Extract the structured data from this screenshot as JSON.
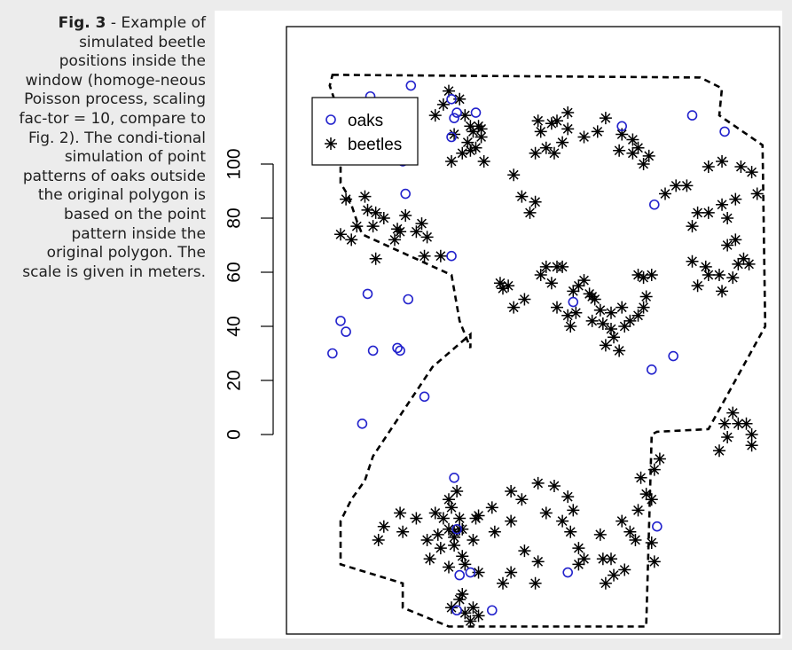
{
  "caption": {
    "label": "Fig. 3",
    "separator": " - ",
    "text": "Example of simulated beetle positions inside the window (homoge-neous Poisson process, scaling fac-tor = 10, compare to Fig. 2). The condi-tional simulation of point patterns of oaks outside the original polygon is based on the point pattern inside the original polygon. The scale is given in meters."
  },
  "chart_data": {
    "type": "scatter",
    "title": "",
    "xlabel": "",
    "ylabel": "",
    "units": "meters",
    "ylim": [
      -72,
      132
    ],
    "xlim": [
      -12,
      164
    ],
    "yticks": [
      0,
      20,
      40,
      60,
      80,
      100
    ],
    "tick_labels": [
      "0",
      "20",
      "40",
      "60",
      "80",
      "100"
    ],
    "grid": false,
    "box": true,
    "legend": {
      "position": "top-left",
      "entries": [
        "oaks",
        "beetles"
      ]
    },
    "colors": {
      "oaks": "#2222cc",
      "beetles": "#000000",
      "boundary": "#000000"
    },
    "boundary": {
      "style": "dashed",
      "x": [
        -3,
        133,
        141,
        140,
        156,
        157,
        136,
        117,
        115,
        115,
        113,
        84,
        40,
        23,
        23,
        0,
        0,
        4,
        9,
        12,
        16,
        34,
        48,
        48,
        44,
        41,
        8,
        6,
        3,
        0,
        0,
        -4,
        -3
      ],
      "y": [
        133,
        132,
        128,
        118,
        107,
        40,
        2,
        1,
        0,
        0,
        -71,
        -71,
        -71,
        -64,
        -55,
        -48,
        -32,
        -24,
        -17,
        -8,
        -2,
        25,
        37,
        32,
        42,
        59,
        74,
        79,
        88,
        93,
        117,
        129,
        133
      ]
    },
    "series": [
      {
        "name": "oaks",
        "marker": "circle",
        "x": [
          11,
          26,
          41,
          42,
          43,
          50,
          130,
          142,
          104,
          23,
          41,
          24,
          2,
          0,
          10,
          41,
          12,
          31,
          8,
          21,
          116,
          86,
          123,
          115,
          42,
          43,
          44,
          22,
          117,
          25,
          48,
          84,
          -3,
          43,
          56
        ],
        "y": [
          125,
          129,
          124,
          117,
          119,
          119,
          118,
          112,
          114,
          101,
          66,
          89,
          38,
          42,
          52,
          110,
          31,
          14,
          4,
          32,
          85,
          49,
          29,
          24,
          -16,
          -35,
          -52,
          31,
          -34,
          50,
          -51,
          -51,
          30,
          -65,
          -65
        ]
      },
      {
        "name": "beetles",
        "marker": "asterisk",
        "x": [
          40,
          44,
          35,
          38,
          46,
          48,
          51,
          52,
          47,
          48,
          45,
          49,
          42,
          41,
          53,
          52,
          50,
          73,
          78,
          84,
          84,
          90,
          95,
          98,
          104,
          80,
          74,
          76,
          72,
          79,
          82,
          103,
          110,
          112,
          108,
          114,
          108,
          120,
          124,
          128,
          136,
          141,
          148,
          152,
          154,
          146,
          141,
          143,
          136,
          132,
          130,
          146,
          147,
          151,
          149,
          143,
          145,
          141,
          140,
          136,
          135,
          132,
          130,
          0,
          4,
          6,
          2,
          10,
          12,
          9,
          13,
          16,
          20,
          21,
          22,
          24,
          28,
          31,
          30,
          32,
          37,
          13,
          64,
          67,
          72,
          70,
          59,
          62,
          60,
          64,
          68,
          74,
          78,
          80,
          76,
          82,
          86,
          88,
          93,
          94,
          90,
          92,
          84,
          80,
          87,
          85,
          97,
          100,
          101,
          103,
          98,
          105,
          110,
          112,
          107,
          104,
          100,
          96,
          93,
          110,
          112,
          113,
          115,
          140,
          142,
          145,
          143,
          147,
          152,
          152,
          150,
          41,
          40,
          43,
          44,
          40,
          38,
          42,
          42,
          37,
          45,
          50,
          56,
          63,
          73,
          79,
          84,
          86,
          82,
          76,
          67,
          63,
          57,
          96,
          97,
          100,
          107,
          109,
          104,
          110,
          115,
          113,
          111,
          116,
          118,
          16,
          22,
          23,
          14,
          28,
          35,
          32,
          42,
          44,
          36,
          45,
          49,
          51,
          33,
          40,
          46,
          51,
          60,
          72,
          68,
          63,
          73,
          90,
          88,
          85,
          88,
          101,
          105,
          98,
          115,
          116,
          41,
          46,
          48,
          44,
          49,
          51,
          45
        ],
        "y": [
          127,
          124,
          118,
          122,
          118,
          114,
          114,
          110,
          108,
          105,
          104,
          112,
          111,
          101,
          101,
          113,
          106,
          116,
          115,
          119,
          113,
          110,
          112,
          117,
          111,
          116,
          112,
          106,
          104,
          104,
          108,
          105,
          106,
          100,
          104,
          103,
          109,
          89,
          92,
          92,
          99,
          101,
          99,
          97,
          89,
          87,
          85,
          80,
          82,
          82,
          77,
          72,
          63,
          63,
          65,
          70,
          58,
          53,
          59,
          59,
          62,
          55,
          64,
          74,
          72,
          77,
          87,
          83,
          77,
          88,
          82,
          80,
          72,
          76,
          75,
          81,
          75,
          66,
          78,
          73,
          66,
          65,
          96,
          88,
          86,
          82,
          56,
          55,
          54,
          47,
          50,
          59,
          56,
          62,
          62,
          62,
          53,
          55,
          51,
          50,
          57,
          52,
          44,
          47,
          45,
          40,
          41,
          39,
          36,
          31,
          33,
          40,
          44,
          47,
          42,
          47,
          45,
          46,
          42,
          59,
          58,
          51,
          59,
          -6,
          4,
          8,
          -1,
          4,
          -4,
          0,
          4,
          -27,
          -24,
          -21,
          -31,
          -35,
          -31,
          -38,
          -41,
          -42,
          -45,
          -31,
          -27,
          -21,
          -18,
          -19,
          -23,
          -28,
          -32,
          -29,
          -24,
          -32,
          -36,
          -37,
          -46,
          -46,
          -36,
          -39,
          -32,
          -28,
          -24,
          -22,
          -16,
          -13,
          -9,
          -34,
          -29,
          -36,
          -39,
          -31,
          -29,
          -39,
          -36,
          -35,
          -37,
          -35,
          -39,
          -30,
          -46,
          -49,
          -48,
          -51,
          -55,
          -55,
          -43,
          -51,
          -47,
          -46,
          -48,
          -36,
          -42,
          -52,
          -50,
          -55,
          -40,
          -47,
          -64,
          -66,
          -69,
          -61,
          -64,
          -67,
          -59
        ]
      }
    ]
  }
}
